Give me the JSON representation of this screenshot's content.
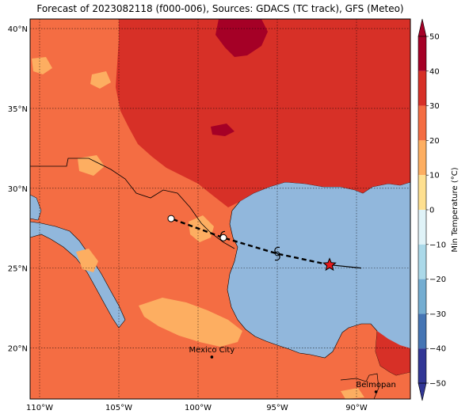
{
  "title": "Forecast of 2023082118 (f000-006), Sources: GDACS (TC track), GFS (Meteo)",
  "lat_ticks": [
    "40°N",
    "35°N",
    "30°N",
    "25°N",
    "20°N"
  ],
  "lon_ticks": [
    "110°W",
    "105°W",
    "100°W",
    "95°W",
    "90°W"
  ],
  "cities": [
    {
      "name": "Mexico City",
      "lon": -99.13,
      "lat": 19.43
    },
    {
      "name": "Belmopan",
      "lon": -88.77,
      "lat": 17.25
    }
  ],
  "colorbar": {
    "label": "Min Temperature (°C)",
    "ticks": [
      "50",
      "40",
      "30",
      "20",
      "10",
      "0",
      "−10",
      "−20",
      "−30",
      "−40",
      "−50"
    ],
    "colors": [
      "#a50026",
      "#d73027",
      "#f46d43",
      "#fdae61",
      "#fee090",
      "#ffffff",
      "#e0f3f8",
      "#abd9e9",
      "#74add1",
      "#4575b4",
      "#313695"
    ]
  },
  "map": {
    "extent": {
      "lon_min": -110.6,
      "lon_max": -86.6,
      "lat_min": 16.8,
      "lat_max": 40.6
    },
    "ocean_color": "#91b7dc",
    "land_color": "#f46d43",
    "hot_color": "#d73027",
    "hottest_color": "#a50026",
    "cool_color": "#fdae61"
  },
  "track": [
    {
      "lon": -91.7,
      "lat": 25.2,
      "type": "current"
    },
    {
      "lon": -95.0,
      "lat": 25.9,
      "type": "tropical-storm"
    },
    {
      "lon": -98.4,
      "lat": 26.9,
      "type": "forecast"
    },
    {
      "lon": -101.7,
      "lat": 28.1,
      "type": "forecast"
    }
  ]
}
